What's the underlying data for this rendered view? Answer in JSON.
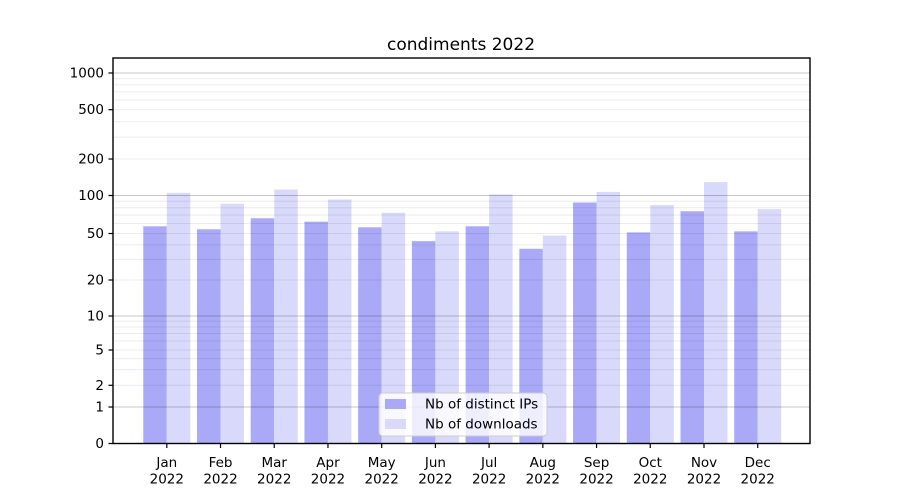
{
  "chart_data": {
    "type": "bar",
    "title": "condiments 2022",
    "categories": [
      "Jan",
      "Feb",
      "Mar",
      "Apr",
      "May",
      "Jun",
      "Jul",
      "Aug",
      "Sep",
      "Oct",
      "Nov",
      "Dec"
    ],
    "year_label": "2022",
    "series": [
      {
        "name": "Nb of distinct IPs",
        "color": "#a9a9f8",
        "values": [
          57,
          54,
          66,
          62,
          56,
          43,
          57,
          37,
          88,
          51,
          75,
          52
        ]
      },
      {
        "name": "Nb of downloads",
        "color": "#d9d9fb",
        "values": [
          105,
          86,
          112,
          93,
          73,
          52,
          102,
          48,
          107,
          84,
          129,
          78
        ]
      }
    ],
    "yscale": "symlog",
    "yticks": [
      0,
      1,
      2,
      5,
      10,
      20,
      50,
      100,
      200,
      500,
      1000
    ],
    "ylim": [
      0,
      1300
    ],
    "grid": true,
    "legend_position": "lower center",
    "colors": {
      "major_gridline": "rgba(0,0,0,0.22)",
      "minor_gridline": "rgba(0,0,0,0.08)",
      "spine": "#000000",
      "legend_border": "#cccccc",
      "legend_background": "rgba(255,255,255,0.8)"
    }
  }
}
